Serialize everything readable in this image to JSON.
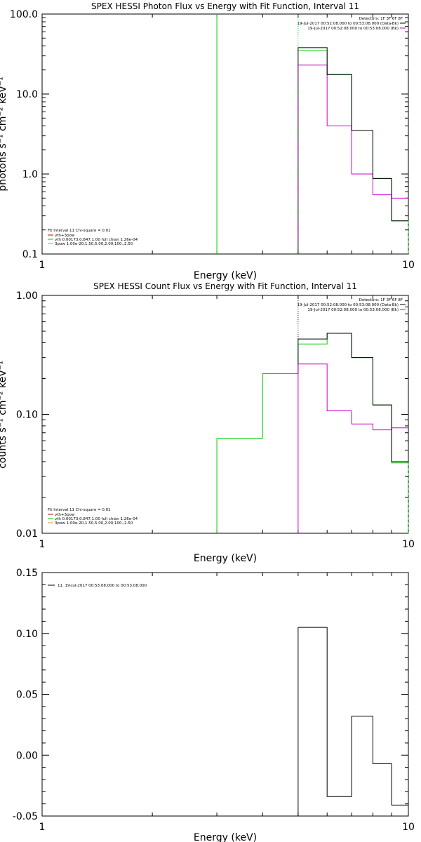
{
  "chart_data": [
    {
      "type": "line",
      "title": "SPEX HESSI Photon Flux vs Energy with Fit Function, Interval 11",
      "xlabel": "Energy (keV)",
      "ylabel": "photons s⁻¹ cm⁻² keV⁻¹",
      "xscale": "log",
      "yscale": "log",
      "xlim": [
        1,
        10
      ],
      "ylim": [
        0.1,
        100
      ],
      "xticks": [
        "1",
        "10"
      ],
      "yticks": [
        "0.1",
        "1.0",
        "10.0",
        "100.0"
      ],
      "legend_top": {
        "header": "Detectors: 1F 3F 6F 8F",
        "lines": [
          {
            "text": "19-Jul-2017 00:52:08.000 to 00:53:08.000 (Data-Bk)",
            "color": "#000000"
          },
          {
            "text": "19-Jul-2017 00:52:08.000 to 00:53:08.000 (Bk)",
            "color": "#cc00cc"
          }
        ]
      },
      "legend_bottom": {
        "header": "Fit Interval 11   Chi-square = 0.01",
        "lines": [
          {
            "text": "vth+3pow",
            "color": "#cc0000"
          },
          {
            "text": "vth 0.00173,0.847,1.00  full chian 1.26e-04",
            "color": "#00cc00"
          },
          {
            "text": "3pow 1.00e-20,1.50,5.00,2.00,100.,2.50",
            "color": "#cc9900"
          }
        ]
      },
      "vlines": [
        {
          "x": 3.0,
          "color": "#00cc00",
          "ymin": 0.1,
          "ymax": 100
        },
        {
          "x": 5.0,
          "color": "#00cc00",
          "style": "dotted",
          "ymin": 38,
          "ymax": 100
        }
      ],
      "edges": [
        5,
        6,
        7,
        8,
        9,
        10
      ],
      "series": [
        {
          "name": "Data-Bk",
          "color": "#000000",
          "values": [
            38,
            17.5,
            3.5,
            0.88,
            0.26
          ]
        },
        {
          "name": "Bk",
          "color": "#cc00cc",
          "values": [
            23,
            4.0,
            1.0,
            0.55,
            0.5
          ]
        },
        {
          "name": "vth",
          "color": "#00cc00",
          "values": [
            35,
            17.5,
            3.5,
            0.88,
            0.26
          ]
        }
      ],
      "segments": [
        {
          "series": 0,
          "x0": 5.0,
          "y0": 0.1,
          "x1": 5.0,
          "y1": 38
        },
        {
          "series": 1,
          "x0": 5.0,
          "y0": 0.1,
          "x1": 5.0,
          "y1": 23,
          "style": "dotted"
        },
        {
          "series": 2,
          "x0": 10.0,
          "y0": 0.26,
          "x1": 10.0,
          "y1": 0.1,
          "style": "dashed"
        }
      ]
    },
    {
      "type": "line",
      "title": "SPEX HESSI Count Flux vs Energy with Fit Function, Interval 11",
      "xlabel": "Energy (keV)",
      "ylabel": "counts s⁻¹ cm⁻² keV⁻¹",
      "xscale": "log",
      "yscale": "log",
      "xlim": [
        1,
        10
      ],
      "ylim": [
        0.01,
        1
      ],
      "xticks": [
        "1",
        "10"
      ],
      "yticks": [
        "0.01",
        "0.10",
        "1.00"
      ],
      "legend_top": {
        "header": "Detectors: 1F 3F 6F 8F",
        "lines": [
          {
            "text": "19-Jul-2017 00:52:08.000 to 00:53:08.000 (Data-Bk)",
            "color": "#000000"
          },
          {
            "text": "19-Jul-2017 00:52:08.000 to 00:53:08.000 (Bk)",
            "color": "#cc00cc"
          }
        ]
      },
      "legend_bottom": {
        "header": "Fit Interval 11   Chi-square = 0.01",
        "lines": [
          {
            "text": "vth+3pow",
            "color": "#cc0000"
          },
          {
            "text": "vth 0.00173,0.847,1.00  full chian 1.26e-04",
            "color": "#00cc00"
          },
          {
            "text": "3pow 1.00e-20,1.50,5.00,2.00,100.,2.50",
            "color": "#cc9900"
          }
        ]
      },
      "vlines": [
        {
          "x": 5.0,
          "color": "#000000",
          "style": "dotted",
          "ymin": 0.43,
          "ymax": 1
        }
      ],
      "edges": [
        5,
        6,
        7,
        8,
        9,
        10
      ],
      "series": [
        {
          "name": "Data-Bk",
          "color": "#000000",
          "values": [
            0.43,
            0.48,
            0.3,
            0.12,
            0.04
          ]
        },
        {
          "name": "Bk",
          "color": "#cc00cc",
          "values": [
            0.265,
            0.107,
            0.083,
            0.074,
            0.077
          ]
        },
        {
          "name": "vth",
          "color": "#00cc00",
          "edges": [
            3,
            4,
            5,
            6,
            7,
            8,
            9,
            10
          ],
          "values": [
            0.063,
            0.22,
            0.39,
            0.48,
            0.3,
            0.12,
            0.039
          ]
        }
      ],
      "segments": [
        {
          "series": 0,
          "x0": 5.0,
          "y0": 0.22,
          "x1": 5.0,
          "y1": 0.43
        },
        {
          "series": 1,
          "x0": 5.0,
          "y0": 0.01,
          "x1": 5.0,
          "y1": 0.265
        },
        {
          "series": 2,
          "x0": 3.0,
          "y0": 0.01,
          "x1": 3.0,
          "y1": 0.063
        },
        {
          "series": 2,
          "x0": 10.0,
          "y0": 0.039,
          "x1": 10.0,
          "y1": 0.01,
          "style": "dashed"
        }
      ]
    },
    {
      "type": "line",
      "title": "",
      "xlabel": "Energy (keV)",
      "ylabel": "",
      "xscale": "log",
      "yscale": "linear",
      "xlim": [
        1,
        10
      ],
      "ylim": [
        -0.05,
        0.15
      ],
      "xticks": [
        "1",
        "10"
      ],
      "yticks": [
        "-0.05",
        "0.00",
        "0.05",
        "0.10",
        "0.15"
      ],
      "legend_top": {
        "header": "",
        "lines": [
          {
            "text": "11. 19-Jul-2017 00:53:08.000 to 00:53:08.000",
            "color": "#000000"
          }
        ]
      },
      "edges": [
        5,
        6,
        7,
        8,
        9,
        10
      ],
      "series": [
        {
          "name": "",
          "color": "#000000",
          "values": [
            0.105,
            -0.034,
            0.032,
            -0.007,
            -0.041
          ]
        }
      ],
      "segments": [
        {
          "series": 0,
          "x0": 5.0,
          "y0": -0.05,
          "x1": 5.0,
          "y1": 0.105
        }
      ]
    }
  ]
}
